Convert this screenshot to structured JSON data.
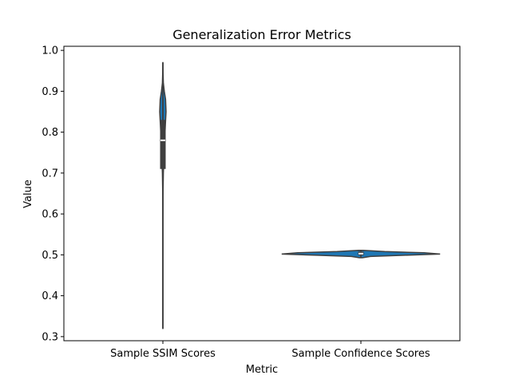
{
  "chart_data": {
    "type": "violin",
    "title": "Generalization Error Metrics",
    "xlabel": "Metric",
    "ylabel": "Value",
    "categories": [
      "Sample SSIM Scores",
      "Sample Confidence Scores"
    ],
    "ylim": [
      0.29,
      1.01
    ],
    "yticks": [
      0.3,
      0.4,
      0.5,
      0.6,
      0.7,
      0.8,
      0.9,
      1.0
    ],
    "ytick_labels": [
      "0.3",
      "0.4",
      "0.5",
      "0.6",
      "0.7",
      "0.8",
      "0.9",
      "1.0"
    ],
    "grid": false,
    "color": "#1f77b4",
    "violins": [
      {
        "category": "Sample SSIM Scores",
        "min": 0.32,
        "q1": 0.71,
        "median": 0.78,
        "q3": 0.83,
        "max": 0.97,
        "density": [
          [
            0.32,
            0.01
          ],
          [
            0.45,
            0.012
          ],
          [
            0.55,
            0.015
          ],
          [
            0.6,
            0.025
          ],
          [
            0.65,
            0.05
          ],
          [
            0.7,
            0.15
          ],
          [
            0.74,
            0.35
          ],
          [
            0.78,
            0.55
          ],
          [
            0.82,
            0.8
          ],
          [
            0.85,
            1.0
          ],
          [
            0.88,
            0.85
          ],
          [
            0.9,
            0.45
          ],
          [
            0.92,
            0.15
          ],
          [
            0.95,
            0.04
          ],
          [
            0.97,
            0.01
          ]
        ]
      },
      {
        "category": "Sample Confidence Scores",
        "min": 0.493,
        "q1": 0.499,
        "median": 0.503,
        "q3": 0.508,
        "max": 0.511,
        "density": [
          [
            0.493,
            0.02
          ],
          [
            0.496,
            0.12
          ],
          [
            0.499,
            0.55
          ],
          [
            0.502,
            1.0
          ],
          [
            0.505,
            0.8
          ],
          [
            0.508,
            0.3
          ],
          [
            0.511,
            0.03
          ]
        ]
      }
    ]
  }
}
